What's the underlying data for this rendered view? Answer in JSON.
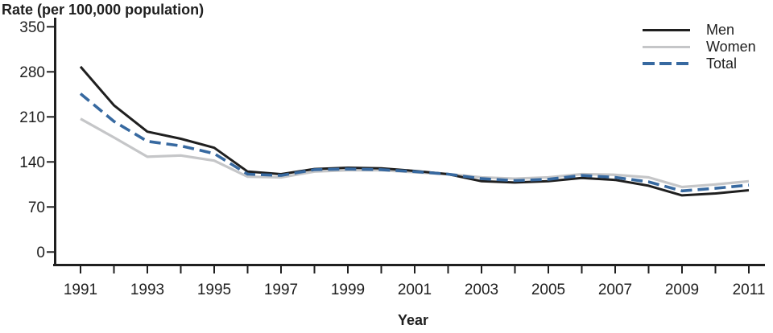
{
  "title": "Rate (per 100,000 population)",
  "x_axis_title": "Year",
  "axis_color": "#1f1f1f",
  "background_color": "#ffffff",
  "chart_data": {
    "type": "line",
    "title": "Rate (per 100,000 population)",
    "xlabel": "Year",
    "ylabel": "Rate (per 100,000 population)",
    "x": [
      1991,
      1992,
      1993,
      1994,
      1995,
      1996,
      1997,
      1998,
      1999,
      2000,
      2001,
      2002,
      2003,
      2004,
      2005,
      2006,
      2007,
      2008,
      2009,
      2010,
      2011
    ],
    "series": [
      {
        "name": "Men",
        "color": "#1f1f1f",
        "line_style": "solid",
        "values": [
          288,
          228,
          187,
          176,
          162,
          125,
          121,
          129,
          131,
          130,
          126,
          121,
          110,
          108,
          110,
          115,
          112,
          103,
          88,
          91,
          96
        ]
      },
      {
        "name": "Women",
        "color": "#c5c6c8",
        "line_style": "solid",
        "values": [
          207,
          178,
          148,
          150,
          142,
          117,
          116,
          125,
          127,
          127,
          124,
          121,
          116,
          114,
          116,
          121,
          120,
          116,
          101,
          105,
          110
        ]
      },
      {
        "name": "Total",
        "color": "#3769a0",
        "line_style": "dashed",
        "values": [
          246,
          203,
          172,
          165,
          153,
          121,
          119,
          128,
          129,
          128,
          125,
          121,
          114,
          111,
          113,
          119,
          116,
          109,
          95,
          99,
          104
        ]
      }
    ],
    "ylim": [
      0,
      350
    ],
    "yticks": [
      0,
      70,
      140,
      210,
      280,
      350
    ],
    "xticks": [
      1991,
      1993,
      1995,
      1997,
      1999,
      2001,
      2003,
      2005,
      2007,
      2009,
      2011
    ],
    "grid": false,
    "legend_position": "top-right",
    "legend_entries": [
      "Men",
      "Women",
      "Total"
    ]
  }
}
